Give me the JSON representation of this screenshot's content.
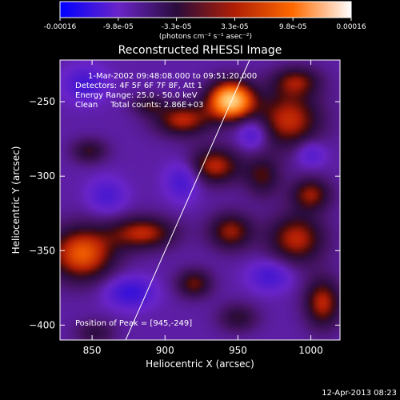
{
  "chart_data": {
    "type": "heatmap",
    "title": "Reconstructed RHESSI Image",
    "xlabel": "Heliocentric X (arcsec)",
    "ylabel": "Heliocentric Y (arcsec)",
    "xlim": [
      828,
      1020
    ],
    "ylim": [
      -410,
      -222
    ],
    "xticks": [
      850,
      900,
      950,
      1000
    ],
    "yticks": [
      -250,
      -300,
      -350,
      -400
    ],
    "colorbar": {
      "ticks": [
        "-0.00016",
        "-9.8e-05",
        "-3.3e-05",
        "3.3e-05",
        "9.8e-05",
        "0.00016"
      ],
      "range": [
        -0.00016,
        0.00016
      ],
      "unit_label": "(photons cm⁻² s⁻¹ asec⁻²)",
      "colors": [
        "#0000ff",
        "#6a24c8",
        "#2a0c3c",
        "#b01e05",
        "#ff6a00",
        "#ffffff"
      ]
    },
    "annotations": [
      "1-Mar-2002 09:48:08.000 to 09:51:20.000",
      "Detectors: 4F 5F 6F 7F 8F, Att 1",
      "Energy Range: 25.0 - 50.0 keV",
      "Clean     Total counts: 2.86E+03"
    ],
    "peak_label": "Position of Peak = [945,-249]",
    "peak": [
      945,
      -249
    ],
    "limb_line": [
      [
        873,
        -410
      ],
      [
        958,
        -222
      ]
    ],
    "blobs": [
      {
        "x": 945,
        "y": -249,
        "sx": 11,
        "sy": 9,
        "a": 1.0
      },
      {
        "x": 912,
        "y": -262,
        "sx": 14,
        "sy": 8,
        "a": 0.5
      },
      {
        "x": 934,
        "y": -293,
        "sx": 13,
        "sy": 9,
        "a": 0.5
      },
      {
        "x": 985,
        "y": -262,
        "sx": 16,
        "sy": 14,
        "a": 0.52
      },
      {
        "x": 1000,
        "y": -312,
        "sx": 10,
        "sy": 8,
        "a": 0.44
      },
      {
        "x": 990,
        "y": -236,
        "sx": 12,
        "sy": 7,
        "a": 0.38
      },
      {
        "x": 843,
        "y": -352,
        "sx": 16,
        "sy": 13,
        "a": 0.65
      },
      {
        "x": 885,
        "y": -338,
        "sx": 16,
        "sy": 8,
        "a": 0.5
      },
      {
        "x": 945,
        "y": -337,
        "sx": 11,
        "sy": 9,
        "a": 0.45
      },
      {
        "x": 990,
        "y": -342,
        "sx": 14,
        "sy": 12,
        "a": 0.5
      },
      {
        "x": 1008,
        "y": -385,
        "sx": 9,
        "sy": 12,
        "a": 0.5
      },
      {
        "x": 920,
        "y": -372,
        "sx": 9,
        "sy": 7,
        "a": 0.4
      },
      {
        "x": 848,
        "y": -283,
        "sx": 9,
        "sy": 6,
        "a": 0.32
      },
      {
        "x": 967,
        "y": -300,
        "sx": 9,
        "sy": 10,
        "a": 0.34
      },
      {
        "x": 950,
        "y": -395,
        "sx": 10,
        "sy": 7,
        "a": 0.3
      },
      {
        "x": 888,
        "y": -252,
        "sx": 8,
        "sy": 5,
        "a": 0.28
      },
      {
        "x": 852,
        "y": -405,
        "sx": 10,
        "sy": 6,
        "a": 0.26
      },
      {
        "x": 912,
        "y": -303,
        "sx": 8,
        "sy": 9,
        "a": -0.35
      },
      {
        "x": 876,
        "y": -378,
        "sx": 11,
        "sy": 7,
        "a": -0.45
      },
      {
        "x": 845,
        "y": -238,
        "sx": 10,
        "sy": 8,
        "a": -0.35
      },
      {
        "x": 960,
        "y": -272,
        "sx": 7,
        "sy": 7,
        "a": -0.35
      },
      {
        "x": 1000,
        "y": -285,
        "sx": 7,
        "sy": 6,
        "a": -0.3
      },
      {
        "x": 972,
        "y": -367,
        "sx": 10,
        "sy": 7,
        "a": -0.35
      },
      {
        "x": 860,
        "y": -313,
        "sx": 9,
        "sy": 8,
        "a": -0.3
      }
    ]
  },
  "footer": {
    "timestamp": "12-Apr-2013 08:23"
  }
}
